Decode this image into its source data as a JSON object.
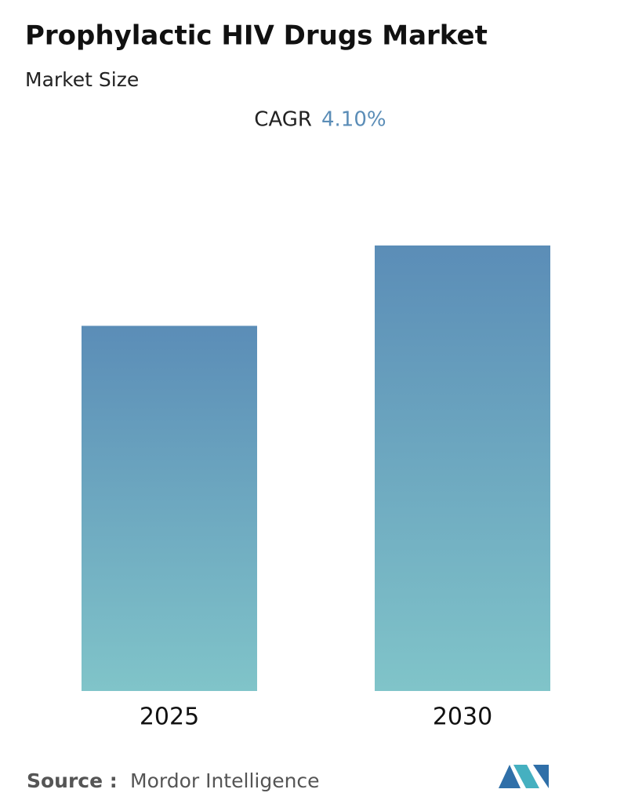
{
  "chart_data": {
    "type": "bar",
    "title": "Prophylactic HIV Drugs Market",
    "subtitle": "Market Size",
    "cagr_label": "CAGR",
    "cagr_value": "4.10%",
    "categories": [
      "2025",
      "2030"
    ],
    "values": [
      100,
      122
    ],
    "color_top": "#5b8db7",
    "color_bottom": "#80c4c9",
    "source_label": "Source :",
    "source": "Mordor Intelligence"
  }
}
